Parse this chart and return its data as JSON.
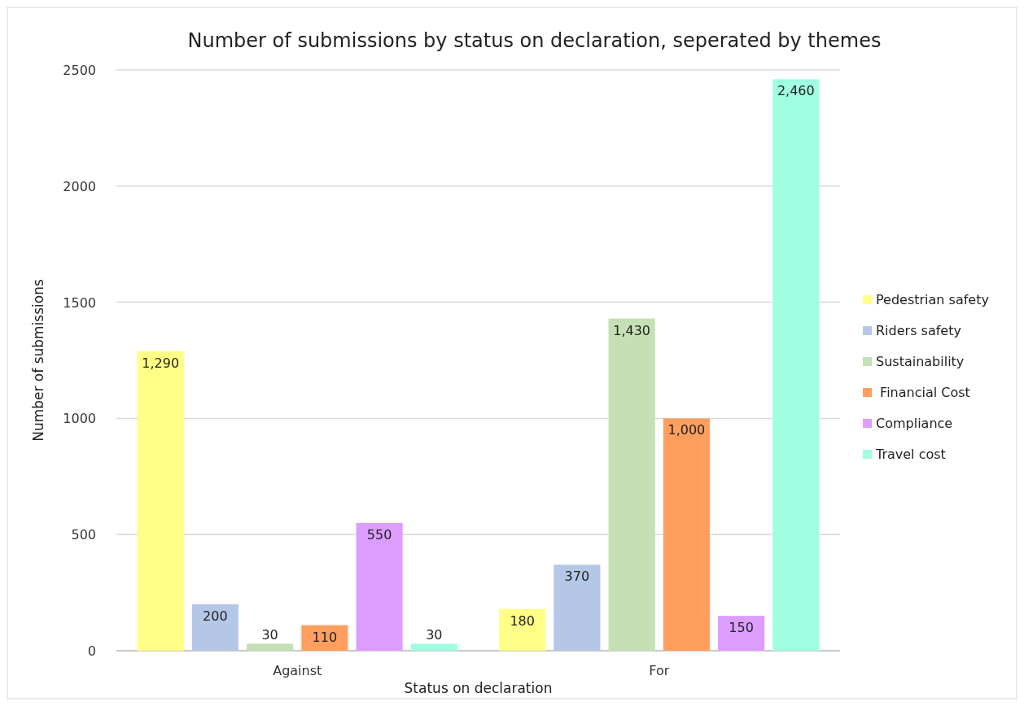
{
  "chart_data": {
    "type": "bar",
    "title": "Number of submissions by status on declaration, seperated by themes",
    "xlabel": "Status on declaration",
    "ylabel": "Number of submissions",
    "categories": [
      "Against",
      "For"
    ],
    "series": [
      {
        "name": "Pedestrian safety",
        "color": "#ffff88",
        "values": [
          1290,
          180
        ],
        "value_labels": [
          "1,290",
          "180"
        ]
      },
      {
        "name": "Riders safety",
        "color": "#b4c7e7",
        "values": [
          200,
          370
        ],
        "value_labels": [
          "200",
          "370"
        ]
      },
      {
        "name": "Sustainability",
        "color": "#c5e0b4",
        "values": [
          30,
          1430
        ],
        "value_labels": [
          "30",
          "1,430"
        ]
      },
      {
        "name": " Financial Cost",
        "color": "#ff9e5e",
        "values": [
          110,
          1000
        ],
        "value_labels": [
          "110",
          "1,000"
        ]
      },
      {
        "name": "Compliance",
        "color": "#dd9dff",
        "values": [
          550,
          150
        ],
        "value_labels": [
          "550",
          "150"
        ]
      },
      {
        "name": "Travel cost",
        "color": "#9fffe0",
        "values": [
          30,
          2460
        ],
        "value_labels": [
          "30",
          "2,460"
        ]
      }
    ],
    "ylim": [
      0,
      2500
    ],
    "yticks": [
      0,
      500,
      1000,
      1500,
      2000,
      2500
    ],
    "grid": "y",
    "legend": "right"
  }
}
